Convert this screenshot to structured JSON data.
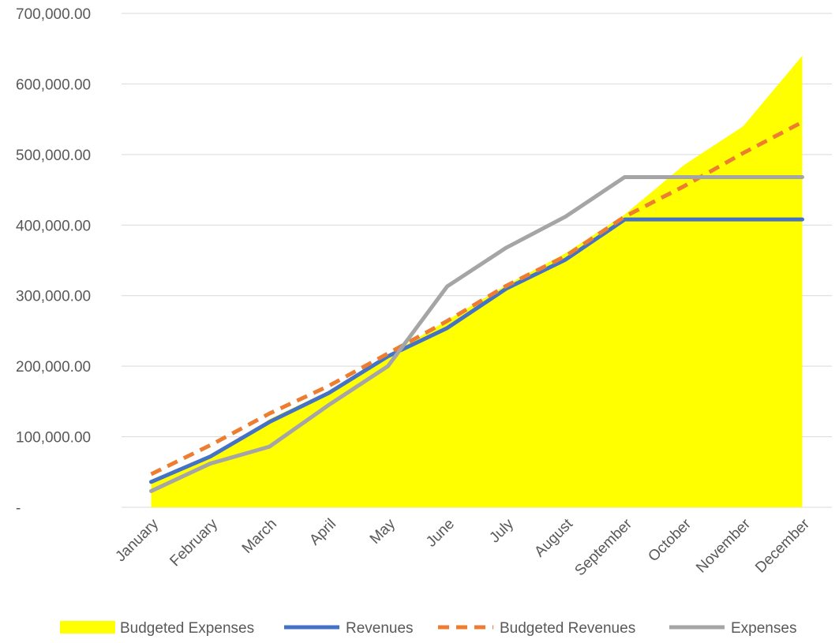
{
  "chart_data": {
    "type": "line",
    "categories": [
      "January",
      "February",
      "March",
      "April",
      "May",
      "June",
      "July",
      "August",
      "September",
      "October",
      "November",
      "December"
    ],
    "ylim": [
      0,
      700000
    ],
    "y_ticks": [
      0,
      100000,
      200000,
      300000,
      400000,
      500000,
      600000,
      700000
    ],
    "y_tick_labels": [
      "-",
      "100,000.00",
      "200,000.00",
      "300,000.00",
      "400,000.00",
      "500,000.00",
      "600,000.00",
      "700,000.00"
    ],
    "grid": true,
    "legend_position": "bottom",
    "series": [
      {
        "name": "Budgeted Expenses",
        "kind": "area",
        "color": "#ffff00",
        "values": [
          35000,
          70000,
          125000,
          165000,
          215000,
          265000,
          315000,
          360000,
          415000,
          485000,
          540000,
          640000
        ]
      },
      {
        "name": "Revenues",
        "kind": "line",
        "color": "#4472c4",
        "values": [
          36000,
          72000,
          121000,
          162000,
          214000,
          254000,
          310000,
          351000,
          408000,
          408000,
          408000,
          408000
        ]
      },
      {
        "name": "Budgeted Revenues",
        "kind": "dashed",
        "color": "#ed7d31",
        "values": [
          47000,
          88000,
          133000,
          172000,
          218000,
          264000,
          314000,
          356000,
          412000,
          455000,
          502000,
          546000
        ]
      },
      {
        "name": "Expenses",
        "kind": "line",
        "color": "#a5a5a5",
        "values": [
          23000,
          62000,
          86000,
          145000,
          200000,
          313000,
          368000,
          412000,
          468000,
          468000,
          468000,
          468000
        ]
      }
    ]
  }
}
